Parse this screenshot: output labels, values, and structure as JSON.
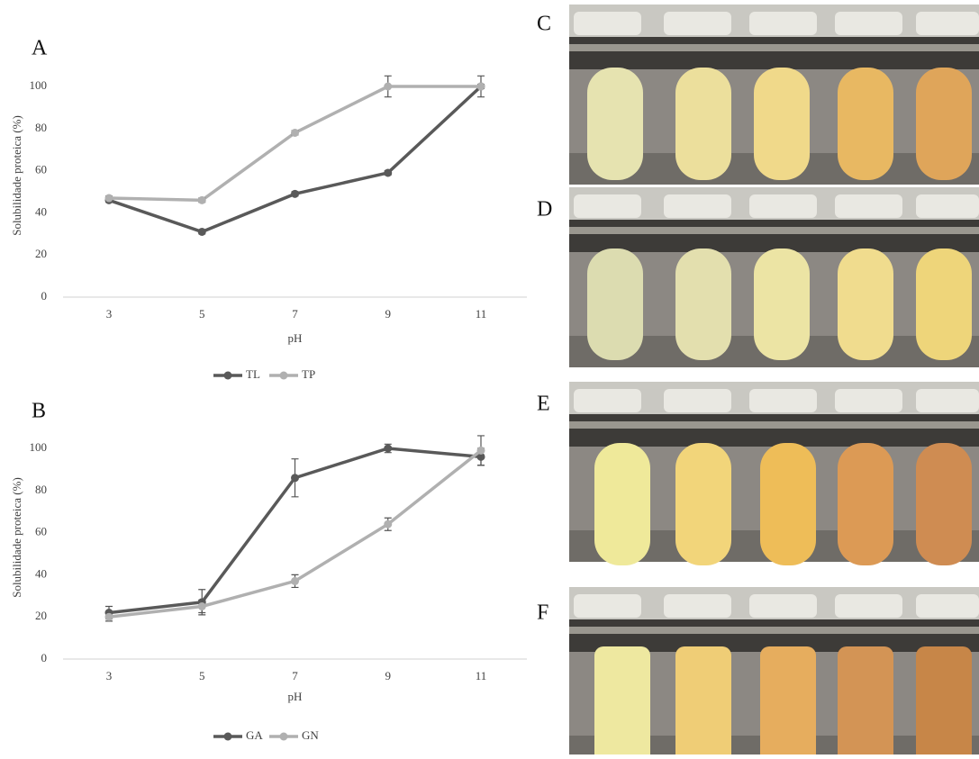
{
  "chart_data": [
    {
      "type": "line",
      "panel": "A",
      "x_label": "pH",
      "y_label": "Solubilidade proteica (%)",
      "categories": [
        "3",
        "5",
        "7",
        "9",
        "11"
      ],
      "series": [
        {
          "name": "TL",
          "color": "#595959",
          "values": [
            46,
            31,
            49,
            59,
            100
          ],
          "errors": [
            1,
            1,
            1,
            1,
            5
          ]
        },
        {
          "name": "TP",
          "color": "#b0b0b0",
          "values": [
            47,
            46,
            78,
            100,
            100
          ],
          "errors": [
            1,
            1,
            1,
            5,
            1
          ]
        }
      ],
      "ylim": [
        0,
        100
      ],
      "yticks": [
        0,
        20,
        40,
        60,
        80,
        100
      ],
      "grid": false,
      "legend": "bottom"
    },
    {
      "type": "line",
      "panel": "B",
      "x_label": "pH",
      "y_label": "Solubilidade proteica (%)",
      "categories": [
        "3",
        "5",
        "7",
        "9",
        "11"
      ],
      "series": [
        {
          "name": "GA",
          "color": "#595959",
          "values": [
            22,
            27,
            86,
            100,
            96
          ],
          "errors": [
            3,
            6,
            9,
            2,
            4
          ]
        },
        {
          "name": "GN",
          "color": "#b0b0b0",
          "values": [
            20,
            25,
            37,
            64,
            99
          ],
          "errors": [
            2,
            3,
            3,
            3,
            7
          ]
        }
      ],
      "ylim": [
        0,
        100
      ],
      "yticks": [
        0,
        20,
        40,
        60,
        80,
        100
      ],
      "grid": false,
      "legend": "bottom"
    }
  ],
  "photos": [
    {
      "label": "C"
    },
    {
      "label": "D"
    },
    {
      "label": "E"
    },
    {
      "label": "F"
    }
  ]
}
